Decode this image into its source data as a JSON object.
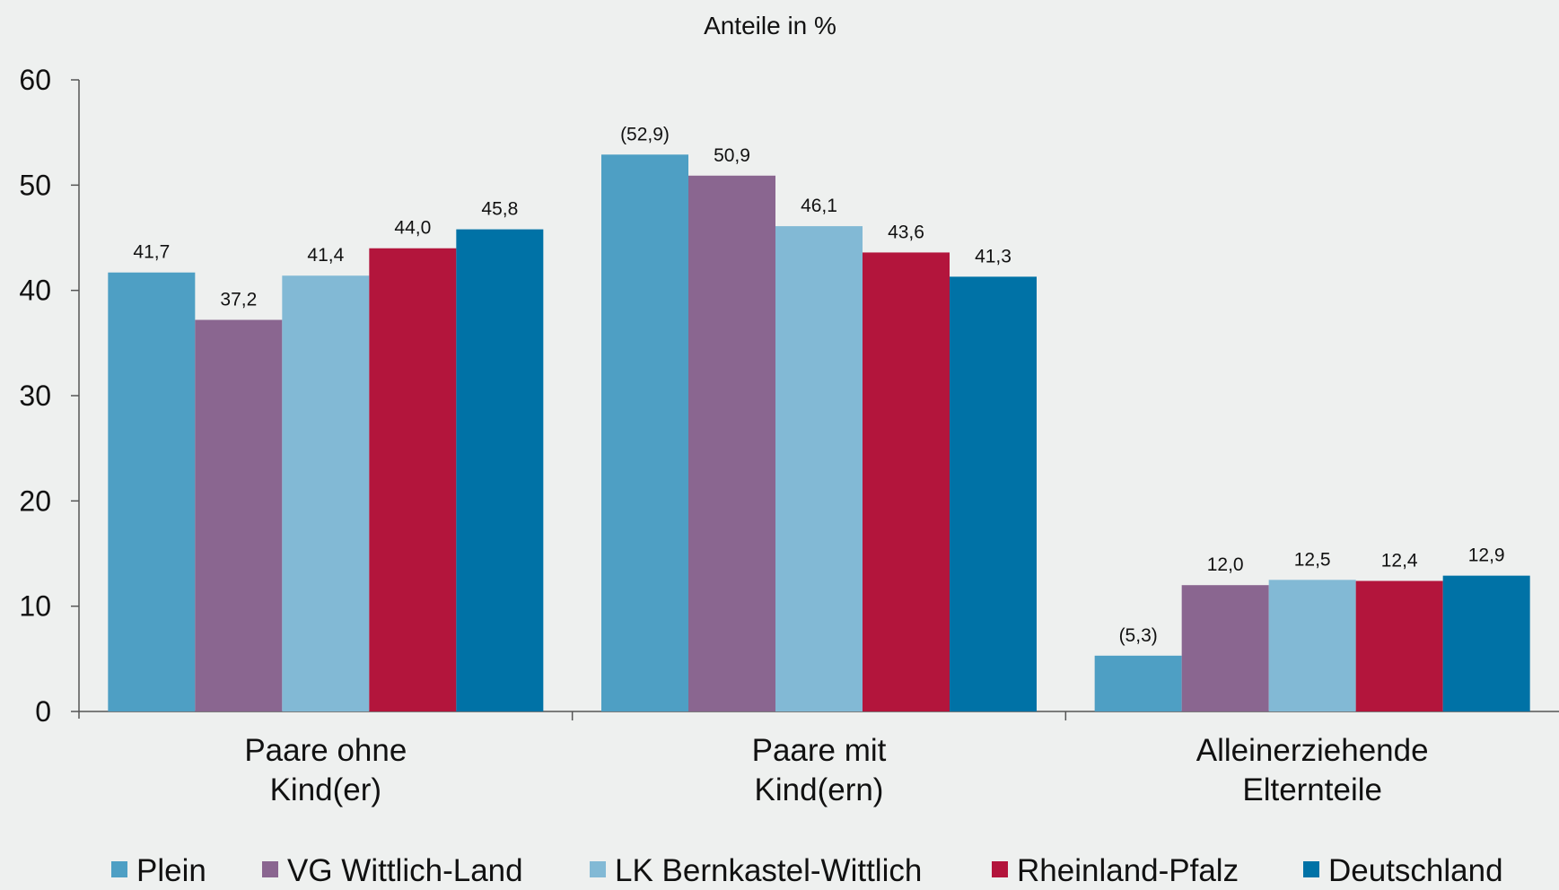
{
  "chart_data": {
    "type": "bar",
    "title": "Anteile in %",
    "ylim": [
      0,
      60
    ],
    "yticks": [
      "0",
      "10",
      "20",
      "30",
      "40",
      "50",
      "60"
    ],
    "grid": false,
    "legend_position": "bottom",
    "categories": [
      [
        "Paare ohne",
        "Kind(er)"
      ],
      [
        "Paare mit",
        "Kind(ern)"
      ],
      [
        "Alleinerziehende",
        "Elternteile"
      ]
    ],
    "series": [
      {
        "name": "Plein",
        "color": "#4e9fc4",
        "values": [
          41.7,
          52.9,
          5.3
        ],
        "labels": [
          "41,7",
          "(52,9)",
          "(5,3)"
        ]
      },
      {
        "name": "VG Wittlich-Land",
        "color": "#8a6690",
        "values": [
          37.2,
          50.9,
          12.0
        ],
        "labels": [
          "37,2",
          "50,9",
          "12,0"
        ]
      },
      {
        "name": "LK Bernkastel-Wittlich",
        "color": "#82b9d5",
        "values": [
          41.4,
          46.1,
          12.5
        ],
        "labels": [
          "41,4",
          "46,1",
          "12,5"
        ]
      },
      {
        "name": "Rheinland-Pfalz",
        "color": "#b3153c",
        "values": [
          44.0,
          43.6,
          12.4
        ],
        "labels": [
          "44,0",
          "43,6",
          "12,4"
        ]
      },
      {
        "name": "Deutschland",
        "color": "#0072a6",
        "values": [
          45.8,
          41.3,
          12.9
        ],
        "labels": [
          "45,8",
          "41,3",
          "12,9"
        ]
      }
    ]
  }
}
